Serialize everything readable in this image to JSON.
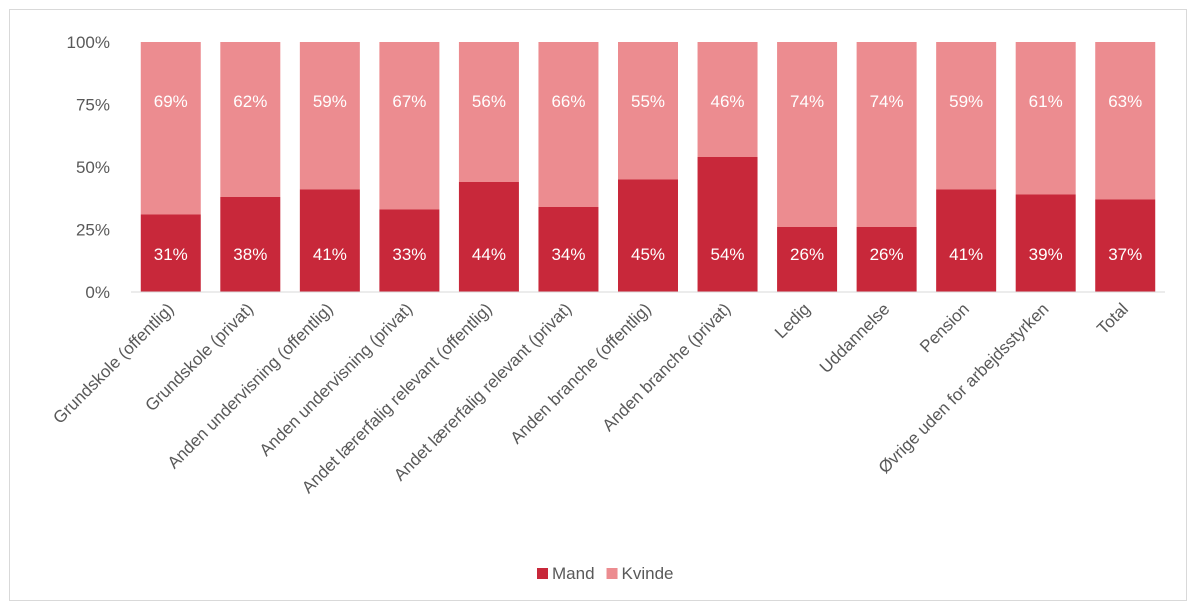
{
  "chart_data": {
    "type": "bar",
    "stacked": true,
    "percent_stacked": true,
    "categories": [
      "Grundskole (offentlig)",
      "Grundskole (privat)",
      "Anden undervisning (offentlig)",
      "Anden undervisning (privat)",
      "Andet lærerfalig relevant (offentlig)",
      "Andet lærerfalig relevant (privat)",
      "Anden branche (offentlig)",
      "Anden branche (privat)",
      "Ledig",
      "Uddannelse",
      "Pension",
      "Øvrige uden for arbejdsstyrken",
      "Total"
    ],
    "series": [
      {
        "name": "Mand",
        "color": "#c8283a",
        "values": [
          31,
          38,
          41,
          33,
          44,
          34,
          45,
          54,
          26,
          26,
          41,
          39,
          37
        ],
        "labels": [
          "31%",
          "38%",
          "41%",
          "33%",
          "44%",
          "34%",
          "45%",
          "54%",
          "26%",
          "26%",
          "41%",
          "39%",
          "37%"
        ]
      },
      {
        "name": "Kvinde",
        "color": "#ec8c90",
        "values": [
          69,
          62,
          59,
          67,
          56,
          66,
          55,
          46,
          74,
          74,
          59,
          61,
          63
        ],
        "labels": [
          "69%",
          "62%",
          "59%",
          "67%",
          "56%",
          "66%",
          "55%",
          "46%",
          "74%",
          "74%",
          "59%",
          "61%",
          "63%"
        ]
      }
    ],
    "y_ticks": [
      "0%",
      "25%",
      "50%",
      "75%",
      "100%"
    ],
    "ylim": [
      0,
      100
    ],
    "grid": false,
    "legend": "bottom-center"
  }
}
